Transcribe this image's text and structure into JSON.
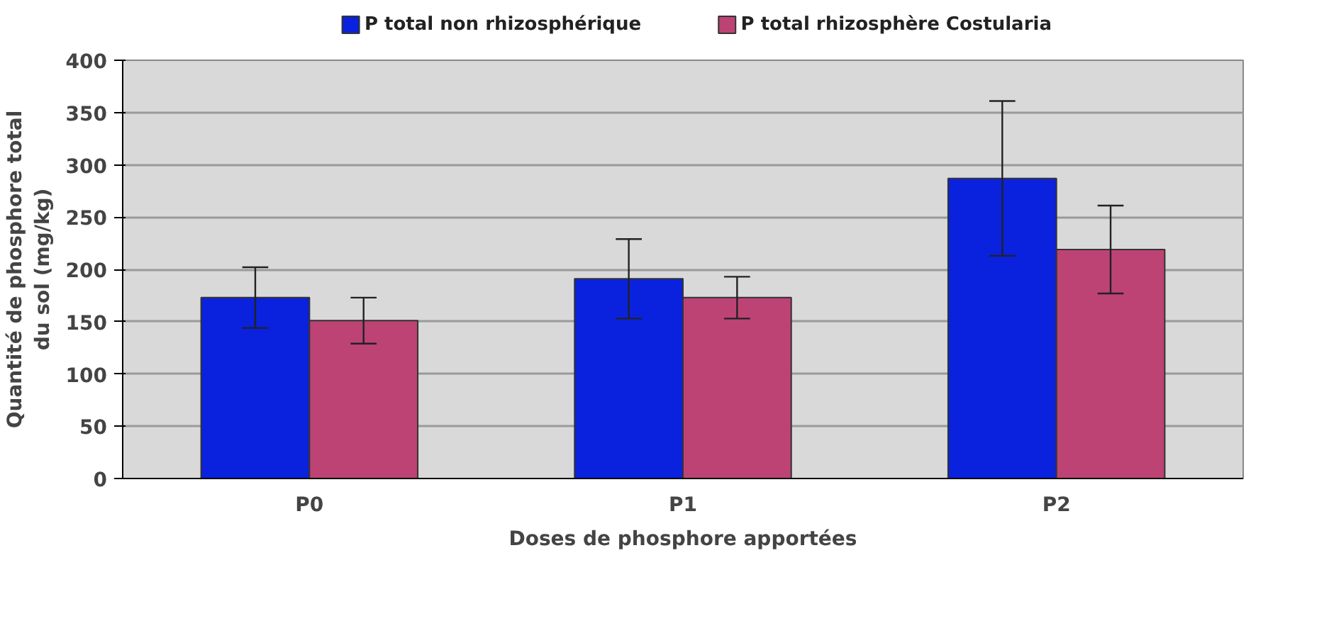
{
  "chart_data": {
    "type": "bar",
    "xlabel": "Doses de phosphore apportées",
    "ylabel": "Quantité de phosphore total du sol (mg/kg)",
    "categories": [
      "P0",
      "P1",
      "P2"
    ],
    "series": [
      {
        "name": "P total non rhizosphérique",
        "color": "#0a22dd",
        "values": [
          173,
          191,
          287
        ],
        "errors": [
          29,
          38,
          74
        ]
      },
      {
        "name": "P total rhizosphère Costularia",
        "color": "#bd4375",
        "values": [
          151,
          173,
          219
        ],
        "errors": [
          22,
          20,
          42
        ]
      }
    ],
    "ylim": [
      0,
      400
    ],
    "yticks": [
      0,
      50,
      100,
      150,
      200,
      250,
      300,
      350,
      400
    ],
    "grid": "y",
    "legend": "top"
  }
}
